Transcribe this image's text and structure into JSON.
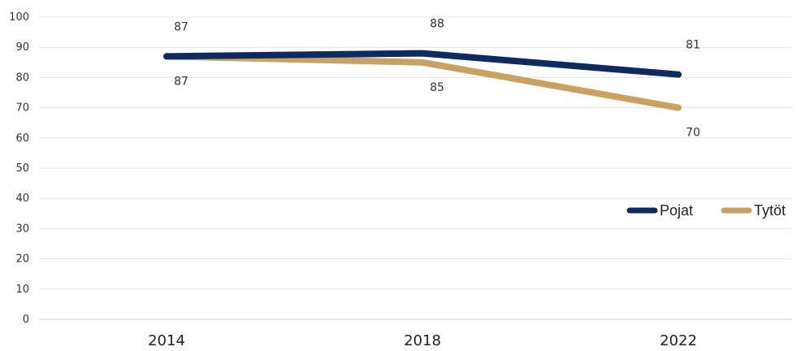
{
  "chart_data": {
    "type": "line",
    "categories": [
      "2014",
      "2018",
      "2022"
    ],
    "series": [
      {
        "name": "Pojat",
        "values": [
          87,
          88,
          81
        ],
        "color": "#0d2b5e"
      },
      {
        "name": "Tytöt",
        "values": [
          87,
          85,
          70
        ],
        "color": "#c9a263"
      }
    ],
    "ylim": [
      0,
      100
    ],
    "yticks": [
      "0",
      "10",
      "20",
      "30",
      "40",
      "50",
      "60",
      "70",
      "80",
      "90",
      "100"
    ],
    "grid": true,
    "legend_position": "right",
    "title": "",
    "xlabel": "",
    "ylabel": ""
  }
}
